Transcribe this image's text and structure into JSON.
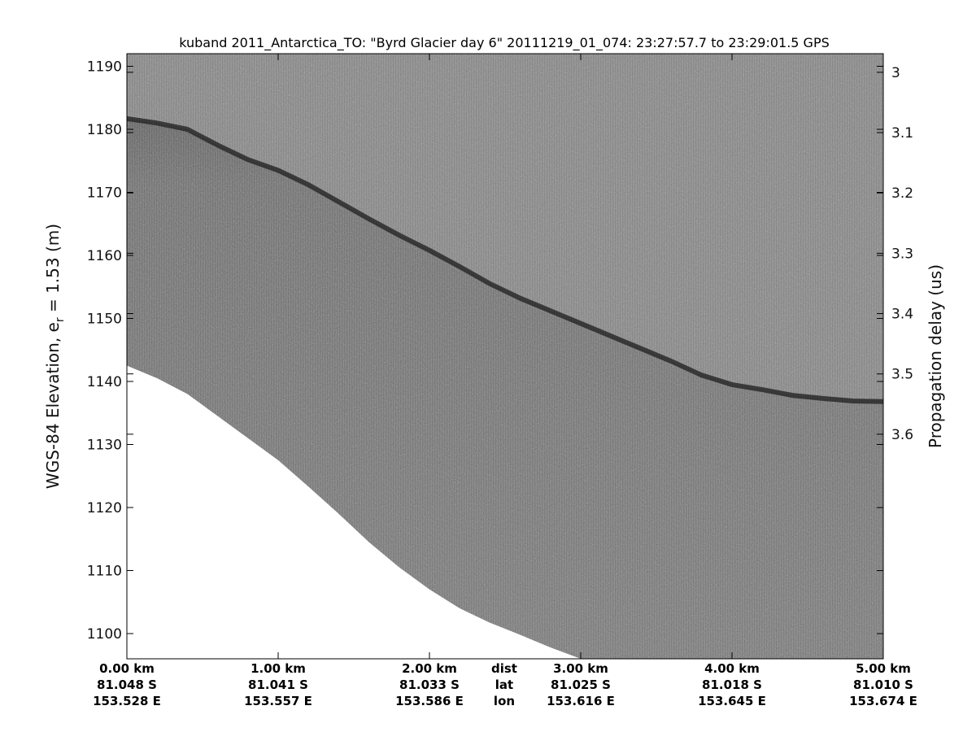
{
  "chart_data": {
    "type": "radargram",
    "title": "kuband 2011_Antarctica_TO: \"Byrd Glacier day 6\"  20111219_01_074: 23:27:57.7 to 23:29:01.5 GPS",
    "ylabel_main": "WGS-84 Elevation, e",
    "ylabel_sub": "r",
    "ylabel_tail": " = 1.53 (m)",
    "y2label": "Propagation delay (us)",
    "ylim": [
      1096,
      1192
    ],
    "y_ticks": [
      "1190",
      "1180",
      "1170",
      "1160",
      "1150",
      "1140",
      "1130",
      "1120",
      "1110",
      "1100"
    ],
    "y2_ticks": [
      "3",
      "3.1",
      "3.2",
      "3.3",
      "3.4",
      "3.5",
      "3.6"
    ],
    "xlim_km": [
      0,
      5
    ],
    "x_labels": [
      {
        "dist": "0.00 km",
        "lat": "81.048 S",
        "lon": "153.528 E"
      },
      {
        "dist": "1.00 km",
        "lat": "81.041 S",
        "lon": "153.557 E"
      },
      {
        "dist": "2.00 km",
        "lat": "81.033 S",
        "lon": "153.586 E"
      },
      {
        "dist": "3.00 km",
        "lat": "81.025 S",
        "lon": "153.616 E"
      },
      {
        "dist": "4.00 km",
        "lat": "81.018 S",
        "lon": "153.645 E"
      },
      {
        "dist": "5.00 km",
        "lat": "81.010 S",
        "lon": "153.674 E"
      }
    ],
    "row_labels": {
      "dist": "dist",
      "lat": "lat",
      "lon": "lon"
    },
    "surface_profile": {
      "x": [
        0,
        0.2,
        0.4,
        0.6,
        0.8,
        1.0,
        1.2,
        1.4,
        1.6,
        1.8,
        2.0,
        2.2,
        2.4,
        2.6,
        2.8,
        3.0,
        3.2,
        3.4,
        3.6,
        3.8,
        4.0,
        4.2,
        4.4,
        4.6,
        4.8,
        5.0
      ],
      "y": [
        1181.7,
        1181,
        1180,
        1177.5,
        1175.2,
        1173.5,
        1171.2,
        1168.5,
        1165.8,
        1163.2,
        1160.8,
        1158.2,
        1155.5,
        1153.2,
        1151.2,
        1149.2,
        1147.2,
        1145.2,
        1143.2,
        1141,
        1139.5,
        1138.7,
        1137.8,
        1137.3,
        1136.9,
        1136.8
      ]
    },
    "data_bottom_profile": {
      "x": [
        0,
        0.2,
        0.4,
        0.6,
        0.8,
        1.0,
        1.2,
        1.4,
        1.6,
        1.8,
        2.0,
        2.2,
        2.4,
        2.6,
        2.8,
        3.0
      ],
      "y": [
        1142.5,
        1140.5,
        1138,
        1134.5,
        1131,
        1127.5,
        1123.3,
        1119,
        1114.5,
        1110.5,
        1107,
        1104,
        1101.7,
        1099.8,
        1097.8,
        1096
      ]
    },
    "colors": {
      "background": "#7f7f7f",
      "surface_line": "#2e2e2e",
      "above_surface": "#878787",
      "below_surface": "#737373",
      "no_data": "#ffffff"
    }
  }
}
